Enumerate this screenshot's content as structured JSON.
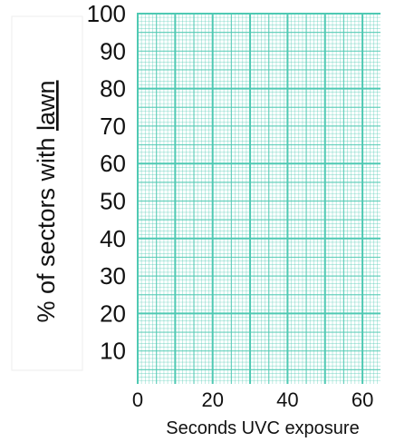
{
  "chart_data": {
    "type": "scatter",
    "title": "",
    "xlabel": "Seconds UVC exposure",
    "ylabel_prefix": "% of sectors with ",
    "ylabel_emph": "lawn",
    "x_ticks": [
      "0",
      "20",
      "40",
      "60"
    ],
    "y_ticks": [
      "10",
      "20",
      "30",
      "40",
      "50",
      "60",
      "70",
      "80",
      "90",
      "100"
    ],
    "xlim": [
      0,
      65
    ],
    "ylim": [
      0,
      100
    ],
    "grid": true,
    "grid_color": "#4fc9b3",
    "series": []
  }
}
